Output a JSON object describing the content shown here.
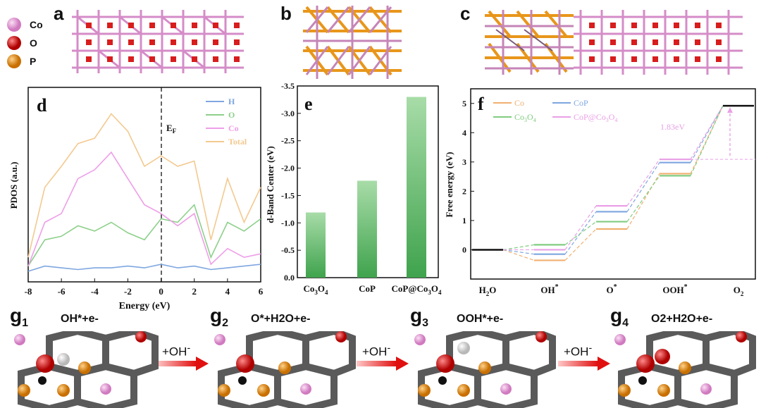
{
  "atom_legend": [
    {
      "label": "Co",
      "color": "#e58ad0"
    },
    {
      "label": "O",
      "color": "#e01b1b"
    },
    {
      "label": "P",
      "color": "#e8961a"
    }
  ],
  "panels": {
    "a": "a",
    "b": "b",
    "c": "c",
    "d": "d",
    "e": "e",
    "f": "f"
  },
  "panel_d": {
    "title": "d",
    "ylabel": "PDOS (a.u.)",
    "xlabel": "Energy (eV)",
    "fermi_label": "E",
    "fermi_sub": "F",
    "xticks": [
      "-8",
      "-6",
      "-4",
      "-2",
      "0",
      "2",
      "4",
      "6"
    ],
    "legend": [
      {
        "label": "H",
        "color": "#7ea6e0"
      },
      {
        "label": "O",
        "color": "#8dd08a"
      },
      {
        "label": "Co",
        "color": "#ee9ee8"
      },
      {
        "label": "Total",
        "color": "#f3c98f"
      }
    ]
  },
  "panel_e": {
    "title": "e",
    "ylabel": "d-Band Center (eV)",
    "yticks": [
      "-3.5",
      "-3.0",
      "-2.5",
      "-2.0",
      "-1.5",
      "-1.0",
      "-0.5",
      "0.0"
    ],
    "categories": [
      {
        "main": "Co",
        "sub": "3",
        "main2": "O",
        "sub2": "4",
        "tail": ""
      },
      {
        "main": "CoP",
        "sub": "",
        "main2": "",
        "sub2": "",
        "tail": ""
      },
      {
        "main": "CoP@Co",
        "sub": "3",
        "main2": "O",
        "sub2": "4",
        "tail": ""
      }
    ]
  },
  "panel_f": {
    "title": "f",
    "ylabel": "Free energy (eV)",
    "yticks": [
      "0",
      "1",
      "2",
      "3",
      "4",
      "5"
    ],
    "xcats": [
      {
        "main": "H",
        "sub": "2",
        "tail": "O",
        "sup": ""
      },
      {
        "main": "OH",
        "sub": "",
        "tail": "",
        "sup": "*"
      },
      {
        "main": "O",
        "sub": "",
        "tail": "",
        "sup": "*"
      },
      {
        "main": "OOH",
        "sub": "",
        "tail": "",
        "sup": "*"
      },
      {
        "main": "O",
        "sub": "2",
        "tail": "",
        "sup": ""
      }
    ],
    "legend": [
      {
        "label": "Co",
        "sub": "",
        "tail": "",
        "color": "#f0b070"
      },
      {
        "label": "CoP",
        "sub": "",
        "tail": "",
        "color": "#7ea6e0"
      },
      {
        "label": "Co",
        "sub": "3",
        "tail": "O",
        "sub2": "4",
        "color": "#80cc80"
      },
      {
        "label": "CoP@Co",
        "sub": "3",
        "tail": "O",
        "sub2": "4",
        "color": "#e9a0e6"
      }
    ],
    "annotation": "1.83eV"
  },
  "chart_data": [
    {
      "type": "bar",
      "title": "e",
      "categories": [
        "Co3O4",
        "CoP",
        "CoP@Co3O4"
      ],
      "values": [
        -1.19,
        -1.77,
        -3.3
      ],
      "xlabel": "",
      "ylabel": "d-Band Center (eV)",
      "ylim": [
        -3.5,
        0.0
      ],
      "color": "#3fa34d"
    },
    {
      "type": "line",
      "title": "f",
      "categories": [
        "H2O",
        "OH*",
        "O*",
        "OOH*",
        "O2"
      ],
      "series": [
        {
          "name": "Co",
          "values": [
            0,
            -0.36,
            0.71,
            2.6,
            4.92
          ],
          "color": "#f0b070"
        },
        {
          "name": "CoP",
          "values": [
            0,
            -0.15,
            1.3,
            2.98,
            4.92
          ],
          "color": "#7ea6e0"
        },
        {
          "name": "Co3O4",
          "values": [
            0,
            0.17,
            0.96,
            2.53,
            4.92
          ],
          "color": "#80cc80"
        },
        {
          "name": "CoP@Co3O4",
          "values": [
            0,
            0.0,
            1.5,
            3.09,
            4.92
          ],
          "color": "#e9a0e6"
        }
      ],
      "annotation": "1.83eV",
      "xlabel": "",
      "ylabel": "Free energy (eV)",
      "ylim": [
        -1,
        5.5
      ]
    },
    {
      "type": "line",
      "title": "d",
      "xlabel": "Energy (eV)",
      "ylabel": "PDOS (a.u.)",
      "xlim": [
        -8,
        6
      ],
      "series": [
        {
          "name": "H",
          "color": "#7ea6e0",
          "x": [
            -8,
            -7,
            -6,
            -5,
            -4,
            -3,
            -2,
            -1,
            0,
            1,
            2,
            3,
            4,
            5,
            6
          ],
          "values": [
            0.02,
            0.05,
            0.04,
            0.03,
            0.04,
            0.04,
            0.05,
            0.04,
            0.06,
            0.04,
            0.05,
            0.03,
            0.04,
            0.05,
            0.06
          ]
        },
        {
          "name": "O",
          "color": "#8dd08a",
          "x": [
            -8,
            -7,
            -6,
            -5,
            -4,
            -3,
            -2,
            -1,
            0,
            1,
            2,
            3,
            4,
            5,
            6
          ],
          "values": [
            0.05,
            0.2,
            0.22,
            0.28,
            0.25,
            0.3,
            0.24,
            0.2,
            0.32,
            0.3,
            0.4,
            0.1,
            0.3,
            0.25,
            0.32
          ]
        },
        {
          "name": "Co",
          "color": "#ee9ee8",
          "x": [
            -8,
            -7,
            -6,
            -5,
            -4,
            -3,
            -2,
            -1,
            0,
            1,
            2,
            3,
            4,
            5,
            6
          ],
          "values": [
            0.05,
            0.3,
            0.35,
            0.55,
            0.6,
            0.7,
            0.55,
            0.4,
            0.35,
            0.28,
            0.35,
            0.06,
            0.15,
            0.1,
            0.12
          ]
        },
        {
          "name": "Total",
          "color": "#f3c98f",
          "x": [
            -8,
            -7,
            -6,
            -5,
            -4,
            -3,
            -2,
            -1,
            0,
            1,
            2,
            3,
            4,
            5,
            6
          ],
          "values": [
            0.1,
            0.5,
            0.62,
            0.75,
            0.78,
            0.92,
            0.82,
            0.62,
            0.68,
            0.62,
            0.65,
            0.2,
            0.55,
            0.3,
            0.5
          ]
        }
      ]
    }
  ],
  "steps": [
    {
      "letter": "g",
      "sub": "1",
      "eq_html": "OH*+e",
      "eq_sup": "-"
    },
    {
      "letter": "g",
      "sub": "2",
      "eq_html": "O*+H",
      "eq_sup": "-"
    },
    {
      "letter": "g",
      "sub": "3",
      "eq_html": "OOH*+e",
      "eq_sup": "-"
    },
    {
      "letter": "g",
      "sub": "4",
      "eq_html": "O",
      "eq_sup": "-"
    }
  ],
  "step_eq_text": [
    "OH*+e-",
    "O*+H2O+e-",
    "OOH*+e-",
    "O2+H2O+e-"
  ],
  "arrow_label": "+OH",
  "arrow_sup": "-"
}
